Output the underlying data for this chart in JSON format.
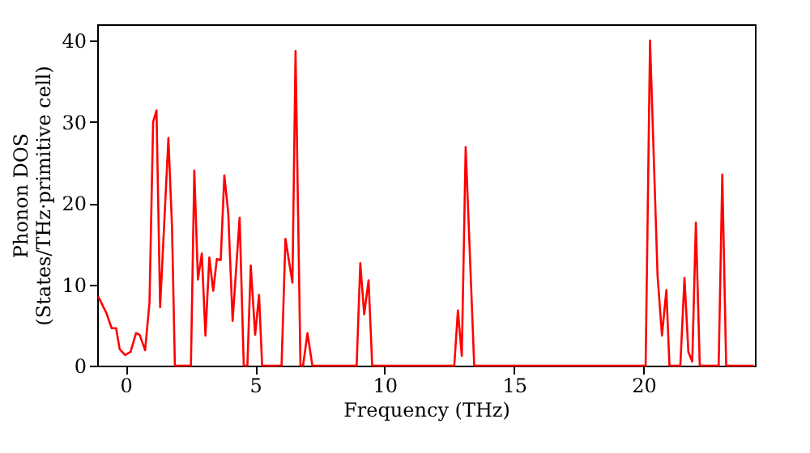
{
  "chart_data": {
    "type": "line",
    "xlabel": "Frequency (THz)",
    "ylabel": "Phonon DOS\n(States/THz·primitive cell)",
    "x": [
      -1.06,
      -0.75,
      -0.54,
      -0.37,
      -0.23,
      -0.02,
      0.19,
      0.4,
      0.54,
      0.75,
      0.92,
      1.06,
      1.19,
      1.33,
      1.65,
      1.79,
      1.9,
      2.52,
      2.65,
      2.79,
      2.94,
      3.08,
      3.23,
      3.38,
      3.52,
      3.67,
      3.81,
      3.96,
      4.13,
      4.4,
      4.56,
      4.7,
      4.83,
      5.0,
      5.15,
      5.27,
      6.02,
      6.17,
      6.44,
      6.56,
      6.75,
      6.85,
      7.02,
      7.21,
      8.92,
      9.06,
      9.21,
      9.38,
      9.52,
      12.69,
      12.83,
      12.98,
      13.13,
      13.46,
      20.08,
      20.25,
      20.54,
      20.71,
      20.88,
      21.0,
      21.42,
      21.58,
      21.73,
      21.88,
      22.02,
      22.17,
      22.9,
      23.04,
      23.19,
      24.25
    ],
    "series": [
      {
        "color": "#ff0000",
        "values": [
          8.5,
          6.5,
          4.6,
          4.6,
          2.0,
          1.3,
          1.7,
          4.0,
          3.8,
          1.9,
          7.8,
          30,
          31.4,
          7.2,
          28,
          17,
          0,
          0,
          24,
          10.6,
          13.8,
          3.7,
          13.3,
          9.2,
          13.1,
          13,
          23.4,
          18.8,
          5.5,
          18.2,
          0,
          0,
          12.3,
          3.8,
          8.7,
          0,
          0,
          15.6,
          10.2,
          38.7,
          0,
          0,
          4.0,
          0,
          0,
          12.6,
          6.3,
          10.5,
          0,
          0,
          6.8,
          1.2,
          26.9,
          0,
          0,
          40,
          11.1,
          3.7,
          9.3,
          0,
          0,
          10.8,
          1.7,
          0.5,
          17.6,
          0,
          0,
          23.5,
          0,
          0
        ]
      }
    ],
    "xlim": [
      -1.1,
      24.3
    ],
    "ylim": [
      0,
      42
    ],
    "xticks": [
      0,
      5,
      10,
      15,
      20
    ],
    "yticks": [
      0,
      10,
      20,
      30,
      40
    ],
    "grid": false,
    "line_style": "solid",
    "marker": "none"
  }
}
